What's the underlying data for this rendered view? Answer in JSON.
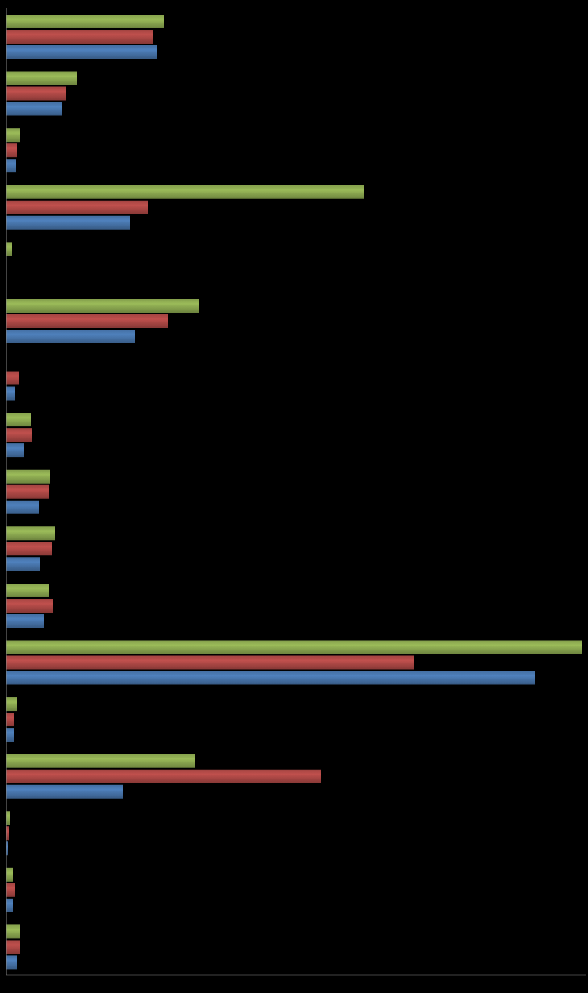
{
  "chart_data": {
    "type": "bar",
    "orientation": "horizontal",
    "tick_labels": false,
    "grid": false,
    "categories": [
      null,
      null,
      null,
      null,
      null,
      null,
      null,
      null,
      null,
      null,
      null,
      null,
      null,
      null,
      null,
      null,
      null
    ],
    "xlim": [
      0,
      720
    ],
    "series": [
      {
        "color": "#9bbb59",
        "values": [
          196,
          87,
          17,
          444,
          7,
          239,
          0,
          31,
          54,
          60,
          53,
          715,
          13,
          234,
          4,
          8,
          17
        ]
      },
      {
        "color": "#c0504d",
        "values": [
          182,
          74,
          13,
          176,
          0,
          200,
          16,
          32,
          53,
          57,
          58,
          506,
          10,
          391,
          3,
          11,
          17
        ]
      },
      {
        "color": "#4f81bd",
        "values": [
          187,
          69,
          12,
          154,
          0,
          160,
          11,
          22,
          40,
          42,
          47,
          656,
          9,
          145,
          2,
          8,
          13
        ]
      }
    ]
  }
}
